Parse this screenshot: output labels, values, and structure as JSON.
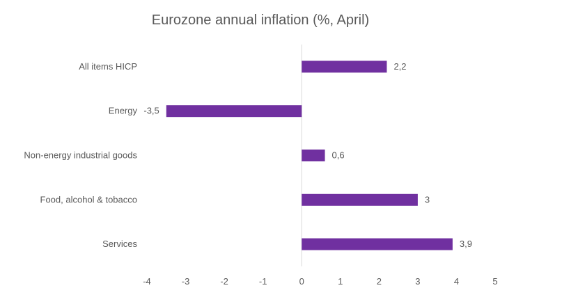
{
  "chart_data": {
    "type": "bar",
    "orientation": "horizontal",
    "title": "Eurozone annual inflation (%, April)",
    "xlabel": "",
    "ylabel": "",
    "categories": [
      "All items HICP",
      "Energy",
      "Non-energy industrial goods",
      "Food, alcohol & tobacco",
      "Services"
    ],
    "values": [
      2.2,
      -3.5,
      0.6,
      3,
      3.9
    ],
    "data_labels": [
      "2,2",
      "-3,5",
      "0,6",
      "3",
      "3,9"
    ],
    "xlim": [
      -4,
      5
    ],
    "x_ticks": [
      -4,
      -3,
      -2,
      -1,
      0,
      1,
      2,
      3,
      4,
      5
    ],
    "x_tick_labels": [
      "-4",
      "-3",
      "-2",
      "-1",
      "0",
      "1",
      "2",
      "3",
      "4",
      "5"
    ],
    "grid": false,
    "legend": "none",
    "bar_color": "#7030A0"
  }
}
